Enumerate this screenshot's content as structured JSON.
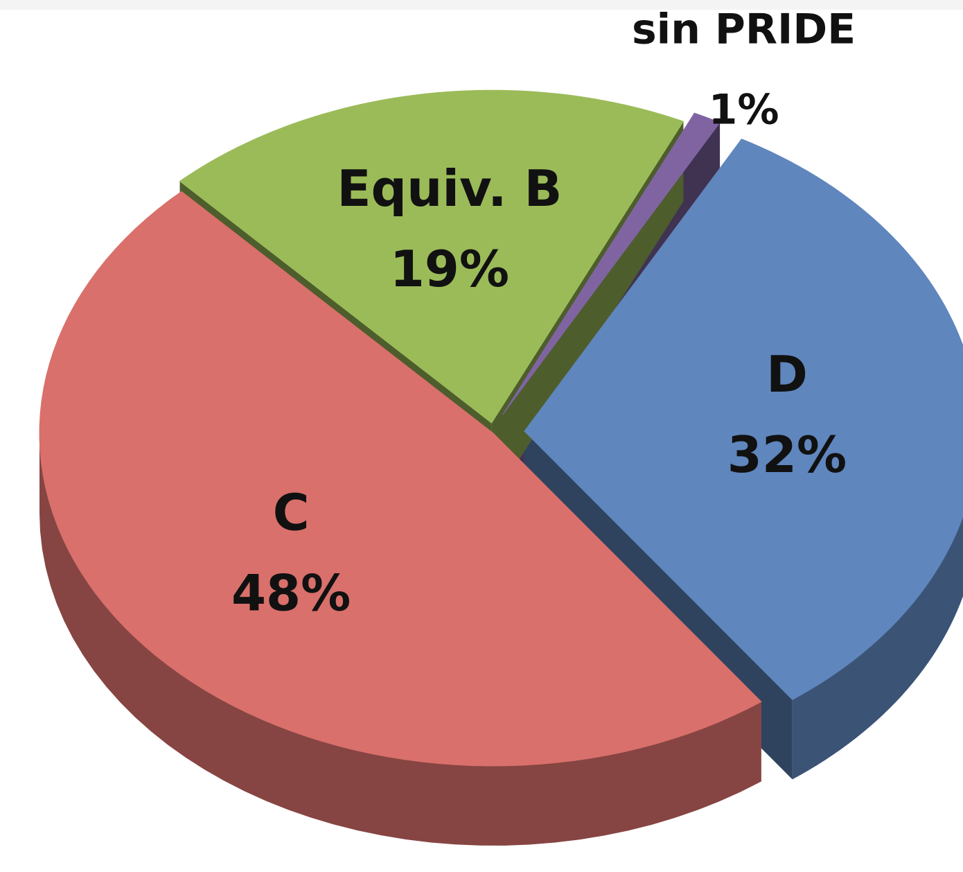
{
  "chart_data": {
    "type": "pie",
    "categories": [
      "sin PRIDE",
      "D",
      "C",
      "Equiv. B"
    ],
    "values": [
      1,
      32,
      48,
      19
    ],
    "value_labels": [
      "1%",
      "32%",
      "48%",
      "19%"
    ],
    "colors": [
      "#8064a2",
      "#5f86bd",
      "#d9706b",
      "#9bbb59"
    ]
  }
}
